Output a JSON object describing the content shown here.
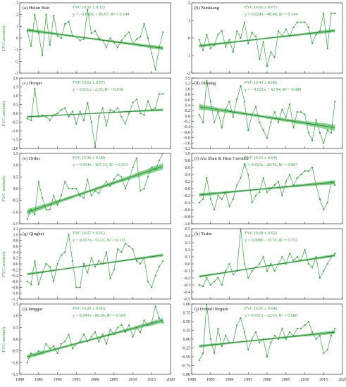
{
  "figure": {
    "ylabel": "FVC anomaly",
    "x_ticks": [
      "1980",
      "1985",
      "1990",
      "1995",
      "2000",
      "2005",
      "2010",
      "2015",
      "2020"
    ],
    "colors": {
      "series": "#33a33a",
      "band": "#5cc469",
      "trend": "#2d7d34",
      "text": "#2e9e3e",
      "axis": "#333333"
    }
  },
  "chart_data": [
    {
      "type": "line",
      "title": "(a) Hulun Buir",
      "stat1": "FVC  (0.56 ± 0.12)",
      "stat2": "y = - 0.043x + 85.67, R² =  0.144",
      "ylabel": "FVC anomaly",
      "ylim": [
        -3,
        3
      ],
      "yticks": [
        "3",
        "2",
        "1",
        "0",
        "-1",
        "-2",
        "-3"
      ],
      "x": [
        1982,
        1983,
        1984,
        1985,
        1986,
        1987,
        1988,
        1989,
        1990,
        1991,
        1992,
        1993,
        1994,
        1995,
        1996,
        1997,
        1998,
        1999,
        2000,
        2001,
        2002,
        2003,
        2004,
        2005,
        2006,
        2007,
        2008,
        2009,
        2010,
        2011,
        2012,
        2013,
        2014,
        2015,
        2016,
        2017,
        2018
      ],
      "values": [
        0.6,
        -0.7,
        2.0,
        0.4,
        -1.5,
        2.0,
        -0.6,
        1.9,
        0.2,
        0.0,
        1.2,
        1.4,
        0.2,
        0.1,
        -0.2,
        -0.1,
        2.4,
        0.4,
        0.6,
        0.0,
        -0.2,
        -0.8,
        0.0,
        -0.4,
        -0.8,
        -0.2,
        0.2,
        0.5,
        -0.5,
        -0.1,
        0.1,
        1.2,
        0.0,
        -1.3,
        -2.7,
        -0.8,
        0.5
      ],
      "trend": [
        0.68,
        -0.87
      ],
      "band_start": 0.45,
      "band_end": 0.5
    },
    {
      "type": "line",
      "title": "(b) Nunkiang",
      "stat1": "FVC  (0.60 ± 0.07)",
      "stat2": "y =  0.024x - 48.48, R² = 0.144",
      "ylabel": "",
      "ylim": [
        -2,
        2
      ],
      "yticks": [
        "2",
        "1",
        "0",
        "-1",
        "-2"
      ],
      "x": [
        1982,
        1983,
        1984,
        1985,
        1986,
        1987,
        1988,
        1989,
        1990,
        1991,
        1992,
        1993,
        1994,
        1995,
        1996,
        1997,
        1998,
        1999,
        2000,
        2001,
        2002,
        2003,
        2004,
        2005,
        2006,
        2007,
        2008,
        2009,
        2010,
        2011,
        2012,
        2013,
        2014,
        2015,
        2016,
        2017,
        2018
      ],
      "values": [
        -0.1,
        -0.7,
        0.2,
        -0.6,
        -0.4,
        0.2,
        0.4,
        -0.5,
        -0.1,
        -0.8,
        0.4,
        0.0,
        0.9,
        -0.3,
        0.3,
        0.1,
        -1.2,
        -0.2,
        -1.6,
        -0.8,
        -1.1,
        0.4,
        0.1,
        0.5,
        0.1,
        0.6,
        0.9,
        0.9,
        0.9,
        0.6,
        -0.3,
        0.2,
        0.4,
        1.4,
        -0.6,
        1.4,
        1.4
      ],
      "trend": [
        -0.45,
        0.42
      ],
      "band_start": 0.25,
      "band_end": 0.3
    },
    {
      "type": "line",
      "title": "(c) Horqin",
      "stat1": "FVC  (0.62 ± 0.07)",
      "stat2": "y = 0.011x - 2.10, R² = 0.030",
      "ylabel": "FVC anomaly",
      "ylim": [
        -2,
        2
      ],
      "yticks": [
        "2.0",
        "1.5",
        "1.0",
        "0.5",
        "0.0",
        "-0.5",
        "-1.0",
        "-1.5",
        "-2.0"
      ],
      "x": [
        1982,
        1983,
        1984,
        1985,
        1986,
        1987,
        1988,
        1989,
        1990,
        1991,
        1992,
        1993,
        1994,
        1995,
        1996,
        1997,
        1998,
        1999,
        2000,
        2001,
        2002,
        2003,
        2004,
        2005,
        2006,
        2007,
        2008,
        2009,
        2010,
        2011,
        2012,
        2013,
        2014,
        2015,
        2016,
        2017,
        2018
      ],
      "values": [
        -0.3,
        -0.4,
        1.4,
        -0.2,
        -0.1,
        -0.2,
        -0.4,
        -0.1,
        0.0,
        0.2,
        0.3,
        -0.2,
        0.1,
        -0.6,
        0.1,
        -0.4,
        0.6,
        -0.5,
        -1.9,
        -0.2,
        0.3,
        -0.7,
        0.2,
        0.1,
        0.3,
        -0.2,
        -0.6,
        0.0,
        0.6,
        0.8,
        0.0,
        -0.1,
        0.7,
        0.2,
        0.3,
        1.1,
        1.1
      ],
      "trend": [
        -0.2,
        0.2
      ],
      "band_start": 0.15,
      "band_end": 0.2
    },
    {
      "type": "line",
      "title": "(d) Otindag",
      "stat1": "FVC  (0.43 ± 0.08)",
      "stat2": "y = - 0.021x + 42.94, R² = 0.089",
      "ylabel": "",
      "ylim": [
        -1.2,
        1.5
      ],
      "yticks": [
        "1.5",
        "1.2",
        "1.0",
        "0.8",
        "0.6",
        "0.4",
        "0.2",
        "0.0",
        "-0.2",
        "-0.4",
        "-0.6",
        "-0.8",
        "-1.0",
        "-1.2"
      ],
      "x": [
        1982,
        1983,
        1984,
        1985,
        1986,
        1987,
        1988,
        1989,
        1990,
        1991,
        1992,
        1993,
        1994,
        1995,
        1996,
        1997,
        1998,
        1999,
        2000,
        2001,
        2002,
        2003,
        2004,
        2005,
        2006,
        2007,
        2008,
        2009,
        2010,
        2011,
        2012,
        2013,
        2014,
        2015,
        2016,
        2017,
        2018
      ],
      "values": [
        0.1,
        -0.2,
        1.4,
        0.6,
        -0.2,
        0.2,
        -0.4,
        0.3,
        0.6,
        0.0,
        0.7,
        1.2,
        0.6,
        -0.5,
        0.1,
        0.4,
        -0.2,
        -0.5,
        -0.8,
        -0.2,
        0.2,
        -0.2,
        0.3,
        0.0,
        0.5,
        -0.4,
        0.2,
        0.2,
        0.1,
        -0.6,
        -0.9,
        -0.1,
        -0.6,
        -1.0,
        -0.5,
        -0.6,
        0.6
      ],
      "trend": [
        0.4,
        -0.4
      ],
      "band_start": 0.3,
      "band_end": 0.35
    },
    {
      "type": "line",
      "title": "(e) Ordos",
      "stat1": "FVC  (0.30 ± 0.08)",
      "stat2": "y = 0.054x - 107.33, R² = 0.563",
      "ylabel": "FVC anomaly",
      "ylim": [
        -1.5,
        1.5
      ],
      "yticks": [
        "1.5",
        "1.0",
        "0.5",
        "0.0",
        "-0.5",
        "-1.0",
        "-1.5"
      ],
      "x": [
        1982,
        1983,
        1984,
        1985,
        1986,
        1987,
        1988,
        1989,
        1990,
        1991,
        1992,
        1993,
        1994,
        1995,
        1996,
        1997,
        1998,
        1999,
        2000,
        2001,
        2002,
        2003,
        2004,
        2005,
        2006,
        2007,
        2008,
        2009,
        2010,
        2011,
        2012,
        2013,
        2014,
        2015,
        2016,
        2017,
        2018
      ],
      "values": [
        -1.3,
        -0.9,
        -1.1,
        0.3,
        -0.4,
        -0.9,
        -0.9,
        -0.3,
        -0.7,
        -0.3,
        0.3,
        0.0,
        0.0,
        0.0,
        -0.3,
        -0.4,
        0.4,
        -0.3,
        -0.1,
        -0.2,
        0.1,
        0.3,
        0.1,
        0.4,
        0.6,
        0.5,
        0.0,
        0.4,
        0.9,
        1.3,
        -0.1,
        0.0,
        0.5,
        0.9,
        0.8,
        1.2,
        1.5
      ],
      "trend": [
        -1.0,
        0.95
      ],
      "band_start": 0.35,
      "band_end": 0.4
    },
    {
      "type": "line",
      "title": "(f) Ala Shan & Hexi Corridor",
      "stat1": "FVC  (0.15 ± 0.04)",
      "stat2": "y = 0.010x - 20.56, R² = 0.087",
      "ylabel": "",
      "ylim": [
        -1.0,
        1.0
      ],
      "yticks": [
        "1.0",
        "0.8",
        "0.6",
        "0.4",
        "0.2",
        "0.0",
        "-0.2",
        "-0.4",
        "-0.6",
        "-0.8",
        "-1.0"
      ],
      "x": [
        1982,
        1983,
        1984,
        1985,
        1986,
        1987,
        1988,
        1989,
        1990,
        1991,
        1992,
        1993,
        1994,
        1995,
        1996,
        1997,
        1998,
        1999,
        2000,
        2001,
        2002,
        2003,
        2004,
        2005,
        2006,
        2007,
        2008,
        2009,
        2010,
        2011,
        2012,
        2013,
        2014,
        2015,
        2016,
        2017,
        2018
      ],
      "values": [
        -0.4,
        -0.3,
        0.3,
        -0.3,
        -0.6,
        -0.2,
        -0.3,
        -0.1,
        -0.5,
        -0.3,
        0.1,
        0.3,
        0.7,
        0.4,
        -0.4,
        -0.2,
        -0.1,
        0.3,
        -0.1,
        0.0,
        0.1,
        0.2,
        -0.2,
        0.2,
        0.4,
        0.1,
        0.3,
        0.4,
        0.5,
        0.5,
        0.6,
        0.1,
        -0.3,
        -0.6,
        -0.4,
        0.2,
        0.1
      ],
      "trend": [
        -0.18,
        0.18
      ],
      "band_start": 0.15,
      "band_end": 0.18
    },
    {
      "type": "line",
      "title": "(g) Qinghai",
      "stat1": "FVC  (0.07 ± 0.05)",
      "stat2": "y = 0.017x - 33.21, R² = 0.131",
      "ylabel": "FVC anomaly",
      "ylim": [
        -1.2,
        1.2
      ],
      "yticks": [
        "1.2",
        "1.0",
        "0.8",
        "0.6",
        "0.4",
        "0.2",
        "0.0",
        "-0.2",
        "-0.4",
        "-0.6",
        "-0.8",
        "-1.0",
        "-1.2"
      ],
      "x": [
        1982,
        1983,
        1984,
        1985,
        1986,
        1987,
        1988,
        1989,
        1990,
        1991,
        1992,
        1993,
        1994,
        1995,
        1996,
        1997,
        1998,
        1999,
        2000,
        2001,
        2002,
        2003,
        2004,
        2005,
        2006,
        2007,
        2008,
        2009,
        2010,
        2011,
        2012,
        2013,
        2014,
        2015,
        2016,
        2017,
        2018
      ],
      "values": [
        -0.6,
        -0.7,
        0.1,
        -0.7,
        -0.3,
        0.0,
        -0.1,
        -0.6,
        0.0,
        0.3,
        0.4,
        1.0,
        0.1,
        -0.8,
        -0.8,
        0.0,
        -0.3,
        0.2,
        -0.1,
        0.1,
        0.0,
        0.4,
        -0.5,
        -0.2,
        0.5,
        0.4,
        0.7,
        0.6,
        0.5,
        0.1,
        0.0,
        0.2,
        -0.6,
        -0.8,
        -0.4,
        -0.1,
        0.1
      ],
      "trend": [
        -0.35,
        0.3
      ],
      "band_start": 0.12,
      "band_end": 0.15
    },
    {
      "type": "line",
      "title": "(h) Tarim",
      "stat1": "FVC  (0.08 ± 0.02)",
      "stat2": "y = 0.008x - 15.55, R² = 0.152",
      "ylabel": "",
      "ylim": [
        -0.5,
        0.5
      ],
      "yticks": [
        "0.5",
        "0.4",
        "0.3",
        "0.2",
        "0.1",
        "0.0",
        "-0.1",
        "-0.2",
        "-0.3",
        "-0.4",
        "-0.5"
      ],
      "x": [
        1982,
        1983,
        1984,
        1985,
        1986,
        1987,
        1988,
        1989,
        1990,
        1991,
        1992,
        1993,
        1994,
        1995,
        1996,
        1997,
        1998,
        1999,
        2000,
        2001,
        2002,
        2003,
        2004,
        2005,
        2006,
        2007,
        2008,
        2009,
        2010,
        2011,
        2012,
        2013,
        2014,
        2015,
        2016,
        2017,
        2018
      ],
      "values": [
        -0.3,
        -0.32,
        -0.2,
        -0.3,
        -0.25,
        -0.2,
        -0.3,
        -0.1,
        0.0,
        -0.15,
        -0.1,
        0.5,
        0.0,
        -0.2,
        -0.1,
        -0.05,
        0.0,
        0.1,
        -0.1,
        0.0,
        -0.1,
        0.0,
        0.1,
        0.0,
        0.15,
        0.05,
        0.1,
        0.05,
        0.2,
        0.0,
        -0.05,
        0.1,
        -0.2,
        -0.1,
        0.0,
        0.1,
        0.15
      ],
      "trend": [
        -0.18,
        0.12
      ],
      "band_start": 0.05,
      "band_end": 0.06
    },
    {
      "type": "line",
      "title": "(i) Junggar",
      "stat1": "FVC  (0.20 ± 0.06)",
      "stat2": "y = 0.043x - 86.06, R² =  0.568",
      "ylabel": "FVC anomaly",
      "ylim": [
        -1.5,
        1.5
      ],
      "yticks": [
        "1.5",
        "1.0",
        "0.5",
        "0.0",
        "-0.5",
        "-1.0",
        "-1.5"
      ],
      "x": [
        1982,
        1983,
        1984,
        1985,
        1986,
        1987,
        1988,
        1989,
        1990,
        1991,
        1992,
        1993,
        1994,
        1995,
        1996,
        1997,
        1998,
        1999,
        2000,
        2001,
        2002,
        2003,
        2004,
        2005,
        2006,
        2007,
        2008,
        2009,
        2010,
        2011,
        2012,
        2013,
        2014,
        2015,
        2016,
        2017,
        2018
      ],
      "values": [
        -1.0,
        -0.6,
        -0.7,
        -0.5,
        -0.6,
        -0.2,
        -0.4,
        -0.3,
        -0.6,
        -0.2,
        -0.1,
        0.2,
        -0.4,
        -0.2,
        -0.1,
        0.2,
        -0.1,
        0.1,
        0.3,
        -0.1,
        0.2,
        -0.2,
        0.4,
        0.2,
        0.5,
        0.6,
        0.3,
        0.6,
        0.1,
        0.5,
        0.3,
        0.8,
        0.6,
        0.7,
        1.4,
        0.9,
        0.7
      ],
      "trend": [
        -0.75,
        0.8
      ],
      "band_start": 0.25,
      "band_end": 0.3
    },
    {
      "type": "line",
      "title": "(j) Overall Region",
      "stat1": "FVC  (0.36 ± 0.04)",
      "stat2": "y = 0.011x - 22.56, R² = 0.080",
      "ylabel": "",
      "ylim": [
        -1.0,
        1.0
      ],
      "yticks": [
        "1.00",
        "0.75",
        "0.50",
        "0.25",
        "0.00",
        "-0.25",
        "-0.50",
        "-0.75",
        "-1.00"
      ],
      "x": [
        1982,
        1983,
        1984,
        1985,
        1986,
        1987,
        1988,
        1989,
        1990,
        1991,
        1992,
        1993,
        1994,
        1995,
        1996,
        1997,
        1998,
        1999,
        2000,
        2001,
        2002,
        2003,
        2004,
        2005,
        2006,
        2007,
        2008,
        2009,
        2010,
        2011,
        2012,
        2013,
        2014,
        2015,
        2016,
        2017,
        2018
      ],
      "values": [
        -0.6,
        -0.4,
        1.0,
        0.0,
        -0.4,
        0.3,
        -0.2,
        0.1,
        -0.1,
        -0.1,
        0.4,
        0.6,
        0.2,
        -0.3,
        0.0,
        0.2,
        -0.1,
        0.0,
        -0.5,
        -0.1,
        0.1,
        0.0,
        0.3,
        0.0,
        0.2,
        0.1,
        0.3,
        0.3,
        0.4,
        0.5,
        0.2,
        0.0,
        0.1,
        -0.4,
        -0.3,
        0.1,
        0.3
      ],
      "trend": [
        -0.2,
        0.2
      ],
      "band_start": 0.12,
      "band_end": 0.15
    }
  ]
}
